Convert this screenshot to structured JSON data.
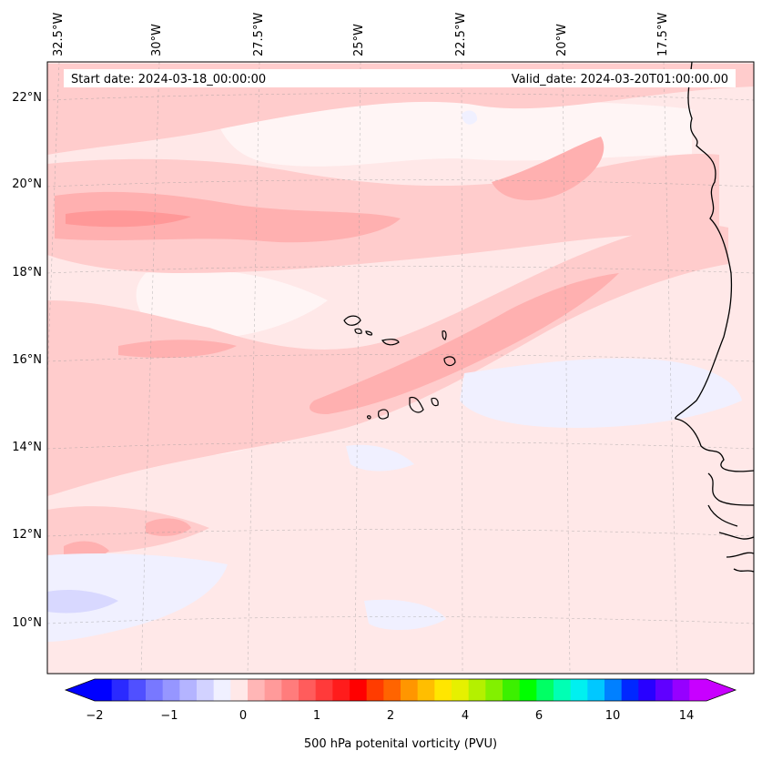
{
  "header": {
    "start_label": "Start date: 2024-03-18_00:00:00",
    "valid_label": "Valid_date: 2024-03-20T01:00:00.00"
  },
  "map": {
    "projection": "lambert-conformal",
    "lon_labels": [
      "32.5°W",
      "30°W",
      "27.5°W",
      "25°W",
      "22.5°W",
      "20°W",
      "17.5°W"
    ],
    "lat_labels": [
      "22°N",
      "20°N",
      "18°N",
      "16°N",
      "14°N",
      "12°N",
      "10°N"
    ],
    "gridlines": true,
    "coastline_color": "#000000",
    "islands": "Cape Verde",
    "coast": "West Africa (Mauritania / Senegal)"
  },
  "colorbar": {
    "label": "500 hPa potenital vorticity (PVU)",
    "tick_labels": [
      "−2",
      "−1",
      "0",
      "1",
      "2",
      "4",
      "6",
      "10",
      "14"
    ],
    "colors": [
      "#0000ff",
      "#2a2aff",
      "#5050ff",
      "#7878ff",
      "#9696ff",
      "#b4b4ff",
      "#d2d2ff",
      "#f0f0ff",
      "#ffe8e8",
      "#ffb6b6",
      "#ff9a9a",
      "#ff7c7c",
      "#ff5c5c",
      "#ff3a3a",
      "#ff1c1c",
      "#ff0000",
      "#ff3c00",
      "#ff6400",
      "#ff9600",
      "#ffbe00",
      "#ffe600",
      "#e6f000",
      "#b4f000",
      "#82f000",
      "#3cf000",
      "#00ff00",
      "#00ff64",
      "#00ffb4",
      "#00f0f0",
      "#00c8ff",
      "#0080ff",
      "#0028ff",
      "#2800ff",
      "#6000ff",
      "#9600ff",
      "#c800ff"
    ],
    "extend": "both"
  }
}
